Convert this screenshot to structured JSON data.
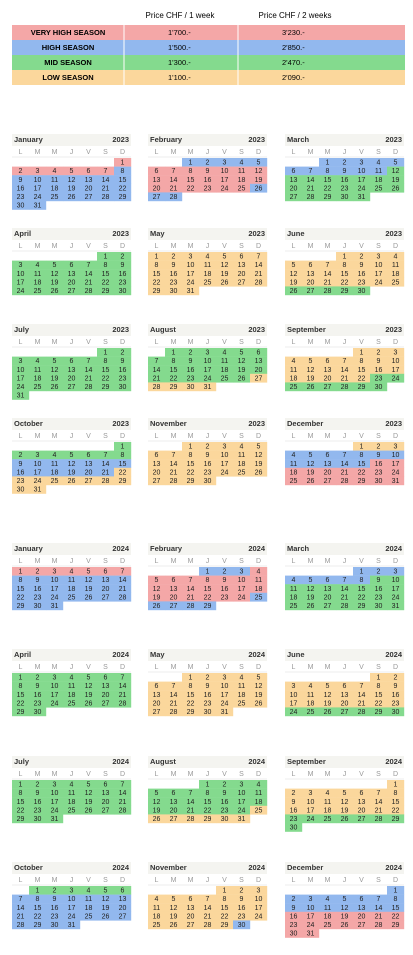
{
  "table": {
    "headers": [
      "Price CHF / 1 week",
      "Price CHF / 2  weeks"
    ],
    "rows": [
      [
        "VERY HIGH SEASON",
        "1'700.-",
        "3'230.-"
      ],
      [
        "HIGH SEASON",
        "1'500.-",
        "2'850.-"
      ],
      [
        "MID SEASON",
        "1'300.-",
        "2'470.-"
      ],
      [
        "LOW SEASON",
        "1'100.-",
        "2'090.-"
      ]
    ],
    "colors": [
      "#f4a7a7",
      "#92b8ee",
      "#84da8e",
      "#fbd79c"
    ]
  },
  "weekdays": [
    "L",
    "M",
    "M",
    "J",
    "V",
    "S",
    "D"
  ],
  "calendars": [
    {
      "month": "January",
      "year": "2023",
      "days": [
        1,
        2,
        3,
        4,
        5,
        6,
        7,
        8,
        9,
        10,
        11,
        12,
        13,
        14,
        15,
        16,
        17,
        18,
        19,
        20,
        21,
        22,
        23,
        24,
        25,
        26,
        27,
        28,
        29,
        30,
        31
      ],
      "seasons": [
        [
          1,
          0
        ],
        [
          8,
          1
        ]
      ]
    },
    {
      "month": "February",
      "year": "2023",
      "days": [
        1,
        2,
        3,
        4,
        5,
        6,
        7,
        8,
        9,
        10,
        11,
        12,
        13,
        14,
        15,
        16,
        17,
        18,
        19,
        20,
        21,
        22,
        23,
        24,
        25,
        26,
        27,
        28
      ],
      "seasons": [
        [
          1,
          1
        ],
        [
          6,
          0
        ],
        [
          26,
          1
        ]
      ]
    },
    {
      "month": "March",
      "year": "2023",
      "days": [
        1,
        2,
        3,
        4,
        5,
        6,
        7,
        8,
        9,
        10,
        11,
        12,
        13,
        14,
        15,
        16,
        17,
        18,
        19,
        20,
        21,
        22,
        23,
        24,
        25,
        26,
        27,
        28,
        29,
        30,
        31
      ],
      "seasons": [
        [
          1,
          1
        ],
        [
          12,
          2
        ]
      ]
    },
    {
      "month": "April",
      "year": "2023",
      "days": [
        1,
        2,
        3,
        4,
        5,
        6,
        7,
        8,
        9,
        10,
        11,
        12,
        13,
        14,
        15,
        16,
        17,
        18,
        19,
        20,
        21,
        22,
        23,
        24,
        25,
        26,
        27,
        28,
        29,
        30
      ],
      "seasons": [
        [
          1,
          2
        ]
      ]
    },
    {
      "month": "May",
      "year": "2023",
      "days": [
        1,
        2,
        3,
        4,
        5,
        6,
        7,
        8,
        9,
        10,
        11,
        12,
        13,
        14,
        15,
        16,
        17,
        18,
        19,
        20,
        21,
        22,
        23,
        24,
        25,
        26,
        27,
        28,
        29,
        30,
        31
      ],
      "seasons": [
        [
          1,
          3
        ]
      ]
    },
    {
      "month": "June",
      "year": "2023",
      "days": [
        1,
        2,
        3,
        4,
        5,
        6,
        7,
        8,
        9,
        10,
        11,
        12,
        13,
        14,
        15,
        16,
        17,
        18,
        19,
        20,
        21,
        22,
        23,
        24,
        25,
        26,
        27,
        28,
        29,
        30
      ],
      "seasons": [
        [
          1,
          3
        ],
        [
          26,
          2
        ]
      ]
    },
    {
      "month": "July",
      "year": "2023",
      "days": [
        1,
        2,
        3,
        4,
        5,
        6,
        7,
        8,
        9,
        10,
        11,
        12,
        13,
        14,
        15,
        16,
        17,
        18,
        19,
        20,
        21,
        22,
        23,
        24,
        25,
        26,
        27,
        28,
        29,
        30,
        31
      ],
      "seasons": [
        [
          1,
          2
        ]
      ]
    },
    {
      "month": "August",
      "year": "2023",
      "days": [
        1,
        2,
        3,
        4,
        5,
        6,
        7,
        8,
        9,
        10,
        11,
        12,
        13,
        14,
        15,
        16,
        17,
        18,
        19,
        20,
        21,
        22,
        23,
        24,
        25,
        26,
        27,
        28,
        29,
        30,
        31
      ],
      "seasons": [
        [
          1,
          2
        ],
        [
          27,
          3
        ]
      ]
    },
    {
      "month": "September",
      "year": "2023",
      "days": [
        1,
        2,
        3,
        4,
        5,
        6,
        7,
        8,
        9,
        10,
        11,
        12,
        13,
        14,
        15,
        16,
        17,
        18,
        19,
        20,
        21,
        22,
        23,
        24,
        25,
        26,
        27,
        28,
        29,
        30
      ],
      "seasons": [
        [
          1,
          3
        ],
        [
          23,
          2
        ]
      ]
    },
    {
      "month": "October",
      "year": "2023",
      "days": [
        1,
        2,
        3,
        4,
        5,
        6,
        7,
        8,
        9,
        10,
        11,
        12,
        13,
        14,
        15,
        16,
        17,
        18,
        19,
        20,
        21,
        22,
        23,
        24,
        25,
        26,
        27,
        28,
        29,
        30,
        31
      ],
      "seasons": [
        [
          1,
          2
        ],
        [
          9,
          1
        ],
        [
          22,
          3
        ]
      ]
    },
    {
      "month": "November",
      "year": "2023",
      "days": [
        1,
        2,
        3,
        4,
        5,
        6,
        7,
        8,
        9,
        10,
        11,
        12,
        13,
        14,
        15,
        16,
        17,
        18,
        19,
        20,
        21,
        22,
        23,
        24,
        25,
        26,
        27,
        28,
        29,
        30
      ],
      "seasons": [
        [
          1,
          3
        ]
      ]
    },
    {
      "month": "December",
      "year": "2023",
      "days": [
        1,
        2,
        3,
        4,
        5,
        6,
        7,
        8,
        9,
        10,
        11,
        12,
        13,
        14,
        15,
        16,
        17,
        18,
        19,
        20,
        21,
        22,
        23,
        24,
        25,
        26,
        27,
        28,
        29,
        30,
        31
      ],
      "seasons": [
        [
          1,
          3
        ],
        [
          4,
          1
        ],
        [
          16,
          0
        ]
      ]
    },
    {
      "month": "January",
      "year": "2024",
      "days": [
        1,
        2,
        3,
        4,
        5,
        6,
        7,
        8,
        9,
        10,
        11,
        12,
        13,
        14,
        15,
        16,
        17,
        18,
        19,
        20,
        21,
        22,
        23,
        24,
        25,
        26,
        27,
        28,
        29,
        30,
        31
      ],
      "seasons": [
        [
          1,
          0
        ],
        [
          8,
          1
        ]
      ]
    },
    {
      "month": "February",
      "year": "2024",
      "days": [
        1,
        2,
        3,
        4,
        5,
        6,
        7,
        8,
        9,
        10,
        11,
        12,
        13,
        14,
        15,
        16,
        17,
        18,
        19,
        20,
        21,
        22,
        23,
        24,
        25,
        26,
        27,
        28,
        29
      ],
      "seasons": [
        [
          1,
          1
        ],
        [
          4,
          0
        ],
        [
          25,
          1
        ]
      ]
    },
    {
      "month": "March",
      "year": "2024",
      "days": [
        1,
        2,
        3,
        4,
        5,
        6,
        7,
        8,
        9,
        10,
        11,
        12,
        13,
        14,
        15,
        16,
        17,
        18,
        19,
        20,
        21,
        22,
        23,
        24,
        25,
        26,
        27,
        28,
        29,
        30,
        31
      ],
      "seasons": [
        [
          1,
          1
        ],
        [
          9,
          2
        ]
      ]
    },
    {
      "month": "April",
      "year": "2024",
      "days": [
        1,
        2,
        3,
        4,
        5,
        6,
        7,
        8,
        9,
        10,
        11,
        12,
        13,
        14,
        15,
        16,
        17,
        18,
        19,
        20,
        21,
        22,
        23,
        24,
        25,
        26,
        27,
        28,
        29,
        30
      ],
      "seasons": [
        [
          1,
          2
        ]
      ]
    },
    {
      "month": "May",
      "year": "2024",
      "days": [
        1,
        2,
        3,
        4,
        5,
        6,
        7,
        8,
        9,
        10,
        11,
        12,
        13,
        14,
        15,
        16,
        17,
        18,
        19,
        20,
        21,
        22,
        23,
        24,
        25,
        26,
        27,
        28,
        29,
        30,
        31
      ],
      "seasons": [
        [
          1,
          3
        ]
      ]
    },
    {
      "month": "June",
      "year": "2024",
      "days": [
        1,
        2,
        3,
        4,
        5,
        6,
        7,
        8,
        9,
        10,
        11,
        12,
        13,
        14,
        15,
        16,
        17,
        18,
        19,
        20,
        21,
        22,
        23,
        24,
        25,
        26,
        27,
        28,
        29,
        30
      ],
      "seasons": [
        [
          1,
          3
        ],
        [
          24,
          2
        ]
      ]
    },
    {
      "month": "July",
      "year": "2024",
      "days": [
        1,
        2,
        3,
        4,
        5,
        6,
        7,
        8,
        9,
        10,
        11,
        12,
        13,
        14,
        15,
        16,
        17,
        18,
        19,
        20,
        21,
        22,
        23,
        24,
        25,
        26,
        27,
        28,
        29,
        30,
        31
      ],
      "seasons": [
        [
          1,
          2
        ]
      ]
    },
    {
      "month": "August",
      "year": "2024",
      "days": [
        1,
        2,
        3,
        4,
        5,
        6,
        7,
        8,
        9,
        10,
        11,
        12,
        13,
        14,
        15,
        16,
        17,
        18,
        19,
        20,
        21,
        22,
        23,
        24,
        25,
        26,
        27,
        28,
        29,
        30,
        31
      ],
      "seasons": [
        [
          1,
          2
        ],
        [
          25,
          3
        ]
      ]
    },
    {
      "month": "September",
      "year": "2024",
      "days": [
        1,
        2,
        3,
        4,
        5,
        6,
        7,
        8,
        9,
        10,
        11,
        12,
        13,
        14,
        15,
        16,
        17,
        18,
        19,
        20,
        21,
        22,
        23,
        24,
        25,
        26,
        27,
        28,
        29,
        30
      ],
      "seasons": [
        [
          1,
          3
        ],
        [
          23,
          2
        ]
      ]
    },
    {
      "month": "October",
      "year": "2024",
      "days": [
        1,
        2,
        3,
        4,
        5,
        6,
        7,
        8,
        9,
        10,
        11,
        12,
        13,
        14,
        15,
        16,
        17,
        18,
        19,
        20,
        21,
        22,
        23,
        24,
        25,
        26,
        27,
        28,
        29,
        30,
        31
      ],
      "seasons": [
        [
          1,
          2
        ],
        [
          7,
          1
        ]
      ]
    },
    {
      "month": "November",
      "year": "2024",
      "days": [
        1,
        2,
        3,
        4,
        5,
        6,
        7,
        8,
        9,
        10,
        11,
        12,
        13,
        14,
        15,
        16,
        17,
        18,
        19,
        20,
        21,
        22,
        23,
        24,
        25,
        26,
        27,
        28,
        29,
        30
      ],
      "seasons": [
        [
          1,
          3
        ],
        [
          30,
          1
        ]
      ]
    },
    {
      "month": "December",
      "year": "2024",
      "days": [
        1,
        2,
        3,
        4,
        5,
        6,
        7,
        8,
        9,
        10,
        11,
        12,
        13,
        14,
        15,
        16,
        17,
        18,
        19,
        20,
        21,
        22,
        23,
        24,
        25,
        26,
        27,
        28,
        29,
        30,
        31
      ],
      "seasons": [
        [
          1,
          1
        ],
        [
          16,
          0
        ]
      ]
    }
  ]
}
